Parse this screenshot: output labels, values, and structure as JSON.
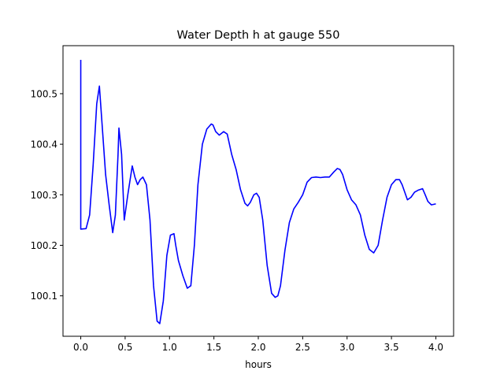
{
  "chart_data": {
    "type": "line",
    "title": "Water Depth h at gauge 550",
    "xlabel": "hours",
    "ylabel": "",
    "xlim": [
      -0.2,
      4.2
    ],
    "ylim": [
      100.02,
      100.595
    ],
    "xticks": [
      0.0,
      0.5,
      1.0,
      1.5,
      2.0,
      2.5,
      3.0,
      3.5,
      4.0
    ],
    "xtick_labels": [
      "0.0",
      "0.5",
      "1.0",
      "1.5",
      "2.0",
      "2.5",
      "3.0",
      "3.5",
      "4.0"
    ],
    "yticks": [
      100.1,
      100.2,
      100.3,
      100.4,
      100.5
    ],
    "ytick_labels": [
      "100.1",
      "100.2",
      "100.3",
      "100.4",
      "100.5"
    ],
    "grid": false,
    "series": [
      {
        "color": "#0000ff",
        "x": [
          0.0,
          0.0,
          0.0,
          0.06,
          0.1,
          0.14,
          0.18,
          0.21,
          0.24,
          0.28,
          0.32,
          0.36,
          0.39,
          0.42,
          0.43,
          0.46,
          0.49,
          0.53,
          0.58,
          0.61,
          0.64,
          0.67,
          0.7,
          0.74,
          0.78,
          0.82,
          0.86,
          0.89,
          0.93,
          0.97,
          1.01,
          1.05,
          1.07,
          1.1,
          1.15,
          1.2,
          1.24,
          1.28,
          1.32,
          1.37,
          1.42,
          1.47,
          1.49,
          1.52,
          1.56,
          1.61,
          1.65,
          1.7,
          1.75,
          1.8,
          1.85,
          1.88,
          1.91,
          1.95,
          1.98,
          2.01,
          2.05,
          2.1,
          2.15,
          2.19,
          2.22,
          2.25,
          2.3,
          2.35,
          2.4,
          2.45,
          2.5,
          2.55,
          2.6,
          2.65,
          2.7,
          2.75,
          2.8,
          2.85,
          2.89,
          2.92,
          2.95,
          3.0,
          3.05,
          3.1,
          3.15,
          3.2,
          3.25,
          3.3,
          3.35,
          3.4,
          3.45,
          3.5,
          3.55,
          3.59,
          3.62,
          3.65,
          3.68,
          3.72,
          3.76,
          3.8,
          3.85,
          3.88,
          3.91,
          3.95,
          4.0
        ],
        "y": [
          100.567,
          100.232,
          100.232,
          100.233,
          100.26,
          100.36,
          100.48,
          100.515,
          100.44,
          100.34,
          100.28,
          100.225,
          100.26,
          100.38,
          100.432,
          100.38,
          100.25,
          100.3,
          100.357,
          100.335,
          100.32,
          100.33,
          100.335,
          100.32,
          100.25,
          100.12,
          100.05,
          100.045,
          100.09,
          100.18,
          100.22,
          100.223,
          100.2,
          100.17,
          100.14,
          100.115,
          100.12,
          100.2,
          100.32,
          100.4,
          100.43,
          100.44,
          100.438,
          100.425,
          100.418,
          100.425,
          100.42,
          100.38,
          100.35,
          100.31,
          100.283,
          100.278,
          100.285,
          100.3,
          100.303,
          100.295,
          100.25,
          100.16,
          100.105,
          100.097,
          100.1,
          100.12,
          100.19,
          100.245,
          100.272,
          100.285,
          100.3,
          100.325,
          100.334,
          100.335,
          100.334,
          100.335,
          100.335,
          100.345,
          100.352,
          100.35,
          100.34,
          100.31,
          100.29,
          100.28,
          100.26,
          100.22,
          100.192,
          100.185,
          100.2,
          100.25,
          100.295,
          100.32,
          100.33,
          100.33,
          100.32,
          100.305,
          100.29,
          100.295,
          100.305,
          100.309,
          100.312,
          100.3,
          100.287,
          100.28,
          100.282
        ]
      }
    ]
  }
}
